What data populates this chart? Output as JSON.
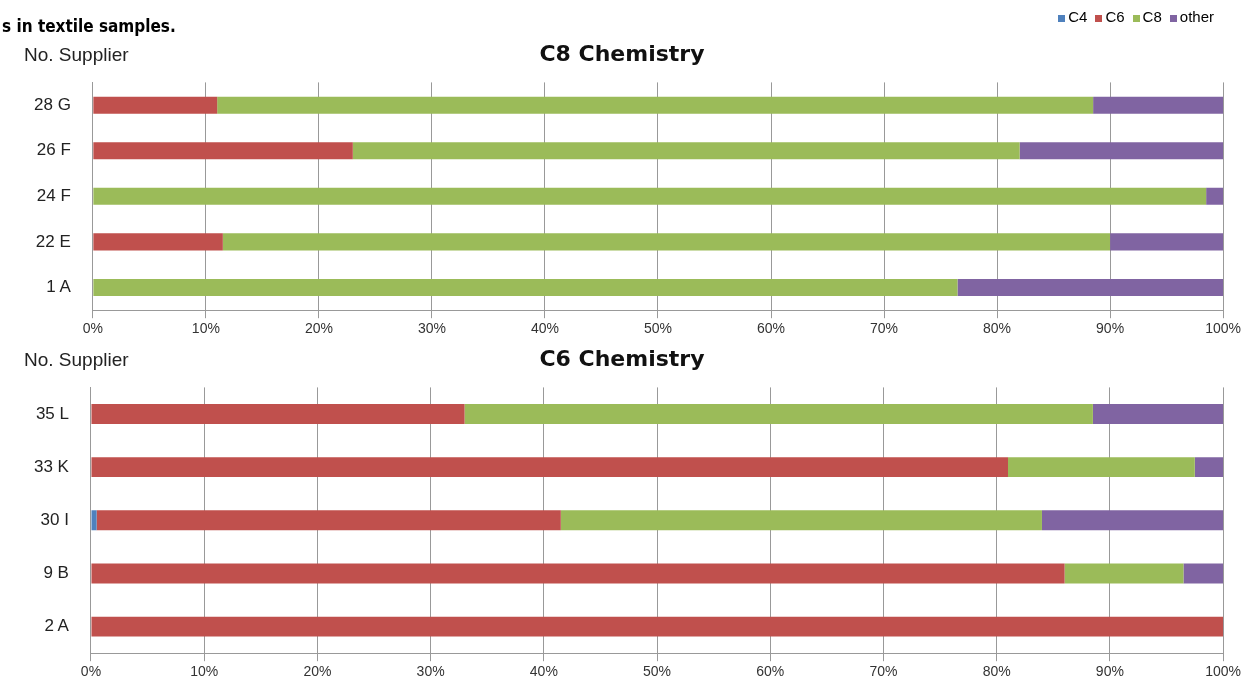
{
  "chart_data": [
    {
      "type": "bar",
      "orientation": "horizontal",
      "stacked": true,
      "title": "C8 Chemistry",
      "ylabel": "No. Supplier",
      "annotations": [
        "s in textile samples."
      ],
      "legend": "top right",
      "grid": "x",
      "categories": [
        "28 G",
        "26 F",
        "24 F",
        "22 E",
        "1 A"
      ],
      "series": [
        {
          "name": "C4",
          "color": "#4f81bd",
          "values": [
            0,
            0,
            0,
            0,
            0
          ]
        },
        {
          "name": "C6",
          "color": "#c0504d",
          "values": [
            11,
            23,
            0,
            11.5,
            0
          ]
        },
        {
          "name": "C8",
          "color": "#9bbb59",
          "values": [
            77.5,
            59,
            98.5,
            78.5,
            76.5
          ]
        },
        {
          "name": "other",
          "color": "#8064a2",
          "values": [
            11.5,
            18,
            1.5,
            10,
            23.5
          ]
        }
      ],
      "xlim": [
        0,
        100
      ],
      "xticks": [
        {
          "value": 0,
          "label": "0%"
        },
        {
          "value": 10,
          "label": "10%"
        },
        {
          "value": 20,
          "label": "20%"
        },
        {
          "value": 30,
          "label": "30%"
        },
        {
          "value": 40,
          "label": "40%"
        },
        {
          "value": 50,
          "label": "50%"
        },
        {
          "value": 60,
          "label": "60%"
        },
        {
          "value": 70,
          "label": "70%"
        },
        {
          "value": 80,
          "label": "80%"
        },
        {
          "value": 90,
          "label": "90%"
        },
        {
          "value": 100,
          "label": "100%"
        }
      ]
    },
    {
      "type": "bar",
      "orientation": "horizontal",
      "stacked": true,
      "title": "C6 Chemistry",
      "ylabel": "No. Supplier",
      "grid": "x",
      "categories": [
        "35 L",
        "33 K",
        "30 I",
        "9 B",
        "2 A"
      ],
      "series": [
        {
          "color": "#4f81bd",
          "values": [
            0,
            0,
            0.5,
            0,
            0
          ]
        },
        {
          "color": "#c0504d",
          "values": [
            33,
            81,
            41,
            86,
            100
          ]
        },
        {
          "color": "#9bbb59",
          "values": [
            55.5,
            16.5,
            42.5,
            10.5,
            0
          ]
        },
        {
          "color": "#8064a2",
          "values": [
            11.5,
            2.5,
            16,
            3.5,
            0
          ]
        }
      ],
      "xlim": [
        0,
        100
      ],
      "xticks": [
        {
          "value": 0,
          "label": "0%"
        },
        {
          "value": 10,
          "label": "10%"
        },
        {
          "value": 20,
          "label": "20%"
        },
        {
          "value": 30,
          "label": "30%"
        },
        {
          "value": 40,
          "label": "40%"
        },
        {
          "value": 50,
          "label": "50%"
        },
        {
          "value": 60,
          "label": "60%"
        },
        {
          "value": 70,
          "label": "70%"
        },
        {
          "value": 80,
          "label": "80%"
        },
        {
          "value": 90,
          "label": "90%"
        },
        {
          "value": 100,
          "label": "100%"
        }
      ]
    }
  ]
}
